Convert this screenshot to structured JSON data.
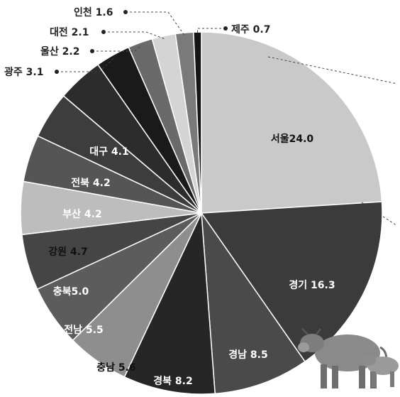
{
  "chart_data": {
    "type": "pie",
    "start_angle_deg": -90,
    "direction": "clockwise",
    "slices": [
      {
        "label": "서울",
        "value": 24.0,
        "text": "서울24.0",
        "color": "#c9c9c9",
        "text_color": "#111111",
        "label_pos": "inside"
      },
      {
        "label": "경기",
        "value": 16.3,
        "text": "경기 16.3",
        "color": "#3b3b3b",
        "text_color": "#ffffff",
        "label_pos": "inside"
      },
      {
        "label": "경남",
        "value": 8.5,
        "text": "경남 8.5",
        "color": "#4a4a4a",
        "text_color": "#ffffff",
        "label_pos": "inside"
      },
      {
        "label": "경북",
        "value": 8.2,
        "text": "경북 8.2",
        "color": "#262626",
        "text_color": "#ffffff",
        "label_pos": "inside"
      },
      {
        "label": "충남",
        "value": 5.6,
        "text": "충남 5.6",
        "color": "#8e8e8e",
        "text_color": "#111111",
        "label_pos": "inside"
      },
      {
        "label": "전남",
        "value": 5.5,
        "text": "전남 5.5",
        "color": "#5c5c5c",
        "text_color": "#ffffff",
        "label_pos": "inside"
      },
      {
        "label": "충북",
        "value": 5.0,
        "text": "충북5.0",
        "color": "#454545",
        "text_color": "#ffffff",
        "label_pos": "inside"
      },
      {
        "label": "강원",
        "value": 4.7,
        "text": "강원 4.7",
        "color": "#bdbdbd",
        "text_color": "#111111",
        "label_pos": "inside"
      },
      {
        "label": "부산",
        "value": 4.2,
        "text": "부산 4.2",
        "color": "#555555",
        "text_color": "#ffffff",
        "label_pos": "inside"
      },
      {
        "label": "전북",
        "value": 4.2,
        "text": "전북 4.2",
        "color": "#3d3d3d",
        "text_color": "#ffffff",
        "label_pos": "inside"
      },
      {
        "label": "대구",
        "value": 4.1,
        "text": "대구 4.1",
        "color": "#2c2c2c",
        "text_color": "#ffffff",
        "label_pos": "inside"
      },
      {
        "label": "광주",
        "value": 3.1,
        "text": "광주 3.1",
        "color": "#1a1a1a",
        "text_color": "#222222",
        "label_pos": "outside"
      },
      {
        "label": "울산",
        "value": 2.2,
        "text": "울산 2.2",
        "color": "#6a6a6a",
        "text_color": "#222222",
        "label_pos": "outside"
      },
      {
        "label": "대전",
        "value": 2.1,
        "text": "대전 2.1",
        "color": "#d4d4d4",
        "text_color": "#222222",
        "label_pos": "outside"
      },
      {
        "label": "인천",
        "value": 1.6,
        "text": "인천 1.6",
        "color": "#7a7a7a",
        "text_color": "#222222",
        "label_pos": "outside"
      },
      {
        "label": "제주",
        "value": 0.7,
        "text": "제주 0.7",
        "color": "#151515",
        "text_color": "#222222",
        "label_pos": "outside"
      }
    ]
  },
  "decoration": {
    "illustration": "cow-and-calf-icon"
  }
}
